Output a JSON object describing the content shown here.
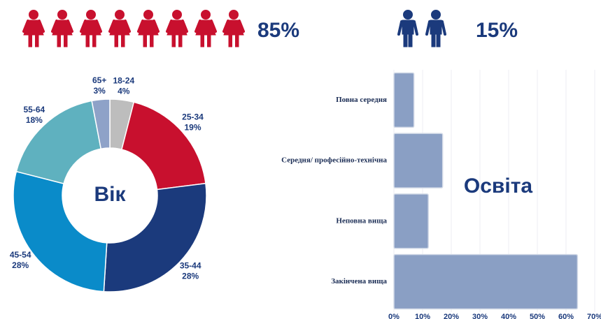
{
  "gender": {
    "female": "85%",
    "male": "15%"
  },
  "chart_data": [
    {
      "type": "pie",
      "donut": true,
      "title": "Вік",
      "categories": [
        "18-24",
        "25-34",
        "35-44",
        "45-54",
        "55-64",
        "65+"
      ],
      "values": [
        4,
        19,
        28,
        28,
        18,
        3
      ],
      "value_labels": [
        "4%",
        "19%",
        "28%",
        "28%",
        "18%",
        "3%"
      ],
      "colors": [
        "#bdbdbd",
        "#c8102e",
        "#1b3a7c",
        "#0a8bc9",
        "#5fb1bf",
        "#8ea2c8"
      ]
    },
    {
      "type": "bar",
      "orientation": "horizontal",
      "title": "Освіта",
      "categories": [
        "Повна середня",
        "Середня/ професійно-технічна",
        "Неповна вища",
        "Закінчена вища"
      ],
      "values": [
        7,
        17,
        12,
        64
      ],
      "color": "#8a9fc4",
      "xlim": [
        0,
        70
      ],
      "xticks": [
        {
          "value": 0,
          "label": "0%"
        },
        {
          "value": 10,
          "label": "10%"
        },
        {
          "value": 20,
          "label": "20%"
        },
        {
          "value": 30,
          "label": "30%"
        },
        {
          "value": 40,
          "label": "40%"
        },
        {
          "value": 50,
          "label": "50%"
        },
        {
          "value": 60,
          "label": "60%"
        },
        {
          "value": 70,
          "label": "70%"
        }
      ],
      "grid": true
    }
  ]
}
